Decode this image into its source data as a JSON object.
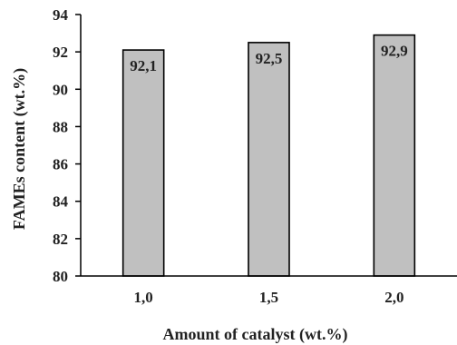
{
  "chart_data": {
    "type": "bar",
    "categories": [
      "1,0",
      "1,5",
      "2,0"
    ],
    "values": [
      92.1,
      92.5,
      92.9
    ],
    "data_labels": [
      "92,1",
      "92,5",
      "92,9"
    ],
    "xlabel": "Amount of catalyst (wt.%)",
    "ylabel": "FAMEs content (wt.%)",
    "ylim": [
      80,
      94
    ],
    "yticks": [
      80,
      82,
      84,
      86,
      88,
      90,
      92,
      94
    ],
    "grid": false,
    "bar_color": "#c0c0c0",
    "bar_edge_color": "#000000"
  }
}
